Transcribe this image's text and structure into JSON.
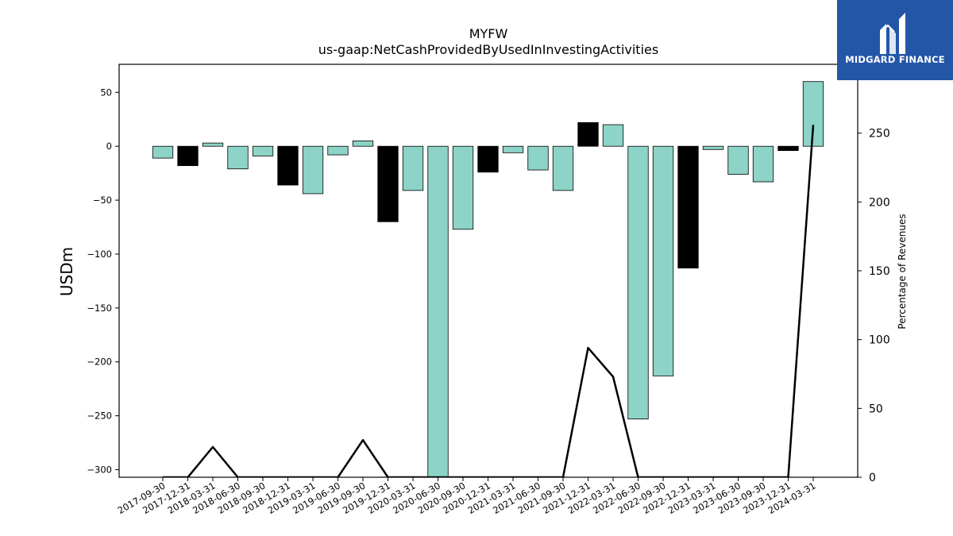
{
  "brand": {
    "name": "MIDGARD FINANCE",
    "bg_color": "#2456a8"
  },
  "chart_data": {
    "type": "bar",
    "title": "MYFW",
    "subtitle": "us-gaap:NetCashProvidedByUsedInInvestingActivities",
    "ylabel": "USDm",
    "y2label": "Percentage of Revenues",
    "ylim": [
      -307,
      76
    ],
    "y2lim": [
      0,
      300
    ],
    "yticks": [
      50,
      0,
      -50,
      -100,
      -150,
      -200,
      -250,
      -300
    ],
    "y2ticks": [
      250,
      200,
      150,
      100,
      50,
      0
    ],
    "categories": [
      "2017-09-30",
      "2017-12-31",
      "2018-03-31",
      "2018-06-30",
      "2018-09-30",
      "2018-12-31",
      "2019-03-31",
      "2019-06-30",
      "2019-09-30",
      "2019-12-31",
      "2020-03-31",
      "2020-06-30",
      "2020-09-30",
      "2020-12-31",
      "2021-03-31",
      "2021-06-30",
      "2021-09-30",
      "2021-12-31",
      "2022-03-31",
      "2022-06-30",
      "2022-09-30",
      "2022-12-31",
      "2023-03-31",
      "2023-06-30",
      "2023-09-30",
      "2023-12-31",
      "2024-03-31"
    ],
    "values": [
      -11,
      -18,
      3,
      -21,
      -9,
      -36,
      -44,
      -8,
      5,
      -70,
      -41,
      -307,
      -77,
      -24,
      -6,
      -22,
      -41,
      22,
      20,
      -253,
      -213,
      -113,
      -3,
      -26,
      -33,
      -4,
      60
    ],
    "bar_colors": [
      "#8dd3c7",
      "#000000",
      "#8dd3c7",
      "#8dd3c7",
      "#8dd3c7",
      "#000000",
      "#8dd3c7",
      "#8dd3c7",
      "#8dd3c7",
      "#000000",
      "#8dd3c7",
      "#8dd3c7",
      "#8dd3c7",
      "#000000",
      "#8dd3c7",
      "#8dd3c7",
      "#8dd3c7",
      "#000000",
      "#8dd3c7",
      "#8dd3c7",
      "#8dd3c7",
      "#000000",
      "#8dd3c7",
      "#8dd3c7",
      "#8dd3c7",
      "#000000",
      "#8dd3c7"
    ],
    "line_series": {
      "axis": "right",
      "color": "#000000",
      "values": [
        0,
        0,
        22,
        0,
        0,
        0,
        0,
        0,
        27,
        0,
        0,
        0,
        0,
        0,
        0,
        0,
        0,
        94,
        73,
        0,
        0,
        0,
        0,
        0,
        0,
        0,
        256
      ]
    },
    "grid": false
  }
}
